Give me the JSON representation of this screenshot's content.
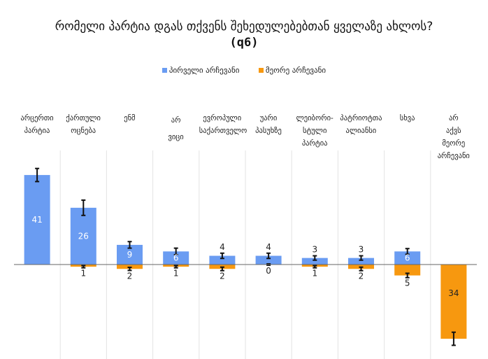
{
  "chart_data": {
    "type": "bar",
    "title": "რომელი პარტია დგას თქვენს შეხედულებებთან ყველაზე ახლოს?",
    "title_code": "(q6)",
    "categories": [
      "არცერთი პარტია",
      "ქართული ოცნება",
      "ენმ",
      "არ ვიცი",
      "ევროპული საქართველო",
      "უარი პასუხზე",
      "ლეიბორი-სტული პარტია",
      "პატრიოტთა ალიანსი",
      "სხვა",
      "არ აქვს მეორე არჩევანი"
    ],
    "series": [
      {
        "name": "პირველი არჩევანი",
        "color": "#6a9cf2",
        "values": [
          41,
          26,
          9,
          6,
          4,
          4,
          3,
          3,
          6,
          null
        ],
        "error": [
          3,
          3.5,
          1.5,
          1.5,
          1.2,
          1.2,
          1,
          1,
          1.3,
          null
        ]
      },
      {
        "name": "მეორე არჩევანი",
        "color": "#f7980f",
        "values": [
          null,
          1,
          2,
          1,
          2,
          0,
          1,
          2,
          5,
          34
        ],
        "error": [
          null,
          0.5,
          0.7,
          0.5,
          0.8,
          0.3,
          0.5,
          0.8,
          1,
          3
        ]
      }
    ],
    "second_shown_negative": true,
    "xlabel": "",
    "ylabel": "",
    "ylim": [
      -38,
      52
    ],
    "grid": "vertical",
    "legend": "top-center"
  }
}
